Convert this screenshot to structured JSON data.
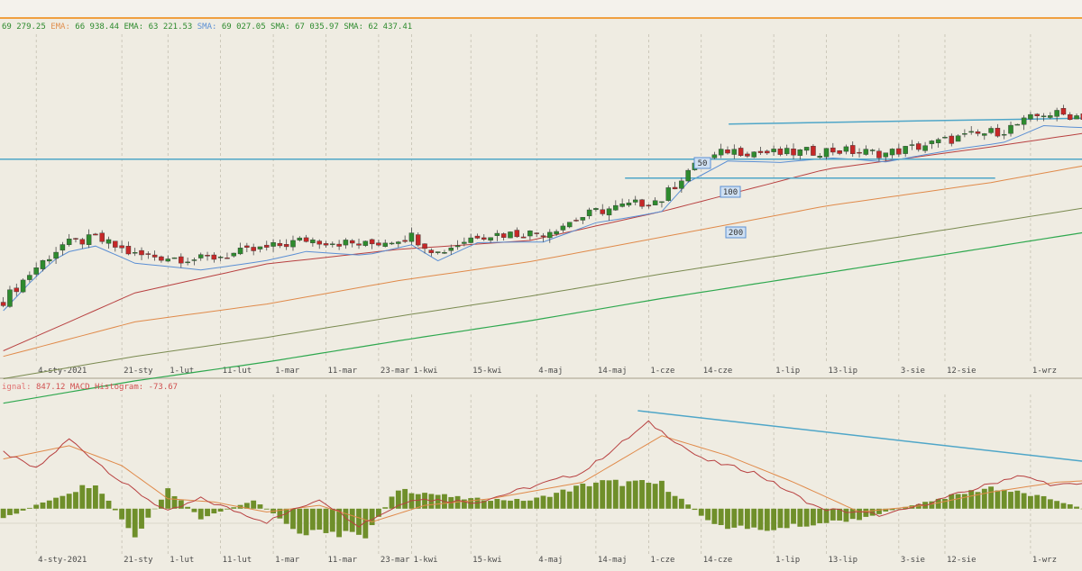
{
  "legend_main": [
    {
      "text": "69 279.25",
      "color": "#2e8b2e"
    },
    {
      "text": "EMA:",
      "color": "#e09050"
    },
    {
      "text": "66 938.44",
      "color": "#2e8b2e"
    },
    {
      "text": "EMA:",
      "color": "#2e8b2e"
    },
    {
      "text": "63 221.53",
      "color": "#2e8b2e"
    },
    {
      "text": "SMA:",
      "color": "#5b8fd4"
    },
    {
      "text": "69 027.05",
      "color": "#2e8b2e"
    },
    {
      "text": "SMA:",
      "color": "#2e8b2e"
    },
    {
      "text": "67 035.97",
      "color": "#2e8b2e"
    },
    {
      "text": "SMA:",
      "color": "#2e8b2e"
    },
    {
      "text": "62 437.41",
      "color": "#2e8b2e"
    }
  ],
  "legend_macd": [
    {
      "text": "ignal:",
      "color": "#e07070"
    },
    {
      "text": "847.12",
      "color": "#d05050"
    },
    {
      "text": "MACD Histogram:",
      "color": "#d05050"
    },
    {
      "text": "-73.67",
      "color": "#d05050"
    }
  ],
  "ma_labels": [
    "50",
    "100",
    "200"
  ],
  "colors": {
    "background": "#efece2",
    "up": "#2e8b2e",
    "down": "#c62828",
    "trend": "#4fa6c8",
    "ema_fast": "#e08a4a",
    "sma_red": "#b84040",
    "sma_blue": "#5b8fd4",
    "sma_olive": "#7a8a50",
    "sma_green": "#2fa84f",
    "histogram": "#6f8f2a",
    "macd": "#b84040",
    "signal": "#e08a4a"
  },
  "chart_data": [
    {
      "type": "candlestick",
      "title": "",
      "x_ticks": [
        "4-sty-2021",
        "21-sty",
        "1-lut",
        "11-lut",
        "1-mar",
        "11-mar",
        "23-mar",
        "1-kwi",
        "15-kwi",
        "4-maj",
        "14-maj",
        "1-cze",
        "14-cze",
        "1-lip",
        "13-lip",
        "3-sie",
        "12-sie",
        "1-wrz"
      ],
      "ylim": [
        46000,
        78000
      ],
      "candle_count": 165,
      "close_anchors": [
        [
          0,
          52800
        ],
        [
          5,
          55800
        ],
        [
          9,
          57800
        ],
        [
          14,
          58400
        ],
        [
          20,
          56900
        ],
        [
          30,
          56500
        ],
        [
          40,
          57500
        ],
        [
          46,
          58300
        ],
        [
          55,
          57800
        ],
        [
          62,
          58600
        ],
        [
          66,
          57100
        ],
        [
          72,
          58700
        ],
        [
          82,
          58900
        ],
        [
          90,
          60800
        ],
        [
          100,
          61900
        ],
        [
          104,
          64500
        ],
        [
          110,
          66300
        ],
        [
          118,
          66000
        ],
        [
          126,
          66300
        ],
        [
          134,
          66000
        ],
        [
          145,
          67400
        ],
        [
          152,
          68100
        ],
        [
          158,
          69600
        ],
        [
          165,
          69300
        ]
      ],
      "moving_averages": [
        {
          "name": "MA 50",
          "values": [
            [
              0,
              48300
            ],
            [
              20,
              53500
            ],
            [
              40,
              56100
            ],
            [
              60,
              57400
            ],
            [
              80,
              58200
            ],
            [
              100,
              60800
            ],
            [
              125,
              64600
            ],
            [
              150,
              66600
            ],
            [
              165,
              67900
            ]
          ]
        },
        {
          "name": "MA 100",
          "values": [
            [
              0,
              47800
            ],
            [
              20,
              50900
            ],
            [
              40,
              52500
            ],
            [
              60,
              54600
            ],
            [
              80,
              56300
            ],
            [
              100,
              58500
            ],
            [
              125,
              61300
            ],
            [
              150,
              63400
            ],
            [
              165,
              65000
            ]
          ]
        },
        {
          "name": "MA 200",
          "values": [
            [
              0,
              45800
            ],
            [
              20,
              47800
            ],
            [
              40,
              49500
            ],
            [
              60,
              51400
            ],
            [
              80,
              53200
            ],
            [
              100,
              55200
            ],
            [
              125,
              57500
            ],
            [
              150,
              59800
            ],
            [
              165,
              61200
            ]
          ]
        }
      ],
      "horizontal_levels": [
        65500,
        63800
      ],
      "trend_line": [
        [
          104,
          63800
        ],
        [
          158,
          68200
        ]
      ]
    },
    {
      "type": "bar",
      "title": "",
      "x_ticks": [
        "4-sty-2021",
        "21-sty",
        "1-lut",
        "11-lut",
        "1-mar",
        "11-mar",
        "23-mar",
        "1-kwi",
        "15-kwi",
        "4-maj",
        "14-maj",
        "1-cze",
        "14-cze",
        "1-lip",
        "13-lip",
        "3-sie",
        "12-sie",
        "1-wrz"
      ],
      "histogram_anchors": [
        [
          0,
          -300
        ],
        [
          8,
          350
        ],
        [
          14,
          800
        ],
        [
          20,
          -900
        ],
        [
          25,
          600
        ],
        [
          30,
          -300
        ],
        [
          38,
          250
        ],
        [
          45,
          -700
        ],
        [
          55,
          -800
        ],
        [
          60,
          600
        ],
        [
          70,
          300
        ],
        [
          80,
          250
        ],
        [
          90,
          800
        ],
        [
          100,
          750
        ],
        [
          108,
          -500
        ],
        [
          115,
          -650
        ],
        [
          130,
          -300
        ],
        [
          140,
          200
        ],
        [
          150,
          650
        ],
        [
          160,
          250
        ],
        [
          165,
          -74
        ]
      ],
      "macd_anchors": [
        [
          0,
          1700
        ],
        [
          5,
          1200
        ],
        [
          10,
          2100
        ],
        [
          18,
          800
        ],
        [
          25,
          -100
        ],
        [
          30,
          300
        ],
        [
          40,
          -400
        ],
        [
          48,
          300
        ],
        [
          54,
          -500
        ],
        [
          62,
          300
        ],
        [
          72,
          200
        ],
        [
          88,
          1100
        ],
        [
          98,
          2600
        ],
        [
          106,
          1500
        ],
        [
          114,
          1100
        ],
        [
          124,
          0
        ],
        [
          134,
          -200
        ],
        [
          146,
          500
        ],
        [
          154,
          1000
        ],
        [
          160,
          700
        ],
        [
          165,
          760
        ]
      ],
      "signal_anchors": [
        [
          0,
          1500
        ],
        [
          10,
          1900
        ],
        [
          18,
          1300
        ],
        [
          25,
          300
        ],
        [
          32,
          200
        ],
        [
          40,
          -100
        ],
        [
          48,
          100
        ],
        [
          56,
          -400
        ],
        [
          64,
          100
        ],
        [
          74,
          300
        ],
        [
          88,
          800
        ],
        [
          100,
          2200
        ],
        [
          110,
          1600
        ],
        [
          120,
          800
        ],
        [
          130,
          -100
        ],
        [
          140,
          100
        ],
        [
          150,
          500
        ],
        [
          160,
          800
        ],
        [
          165,
          847
        ]
      ],
      "ylim": [
        -1500,
        3500
      ],
      "trend_line": [
        [
          98,
          2750
        ],
        [
          160,
          1100
        ]
      ]
    }
  ]
}
